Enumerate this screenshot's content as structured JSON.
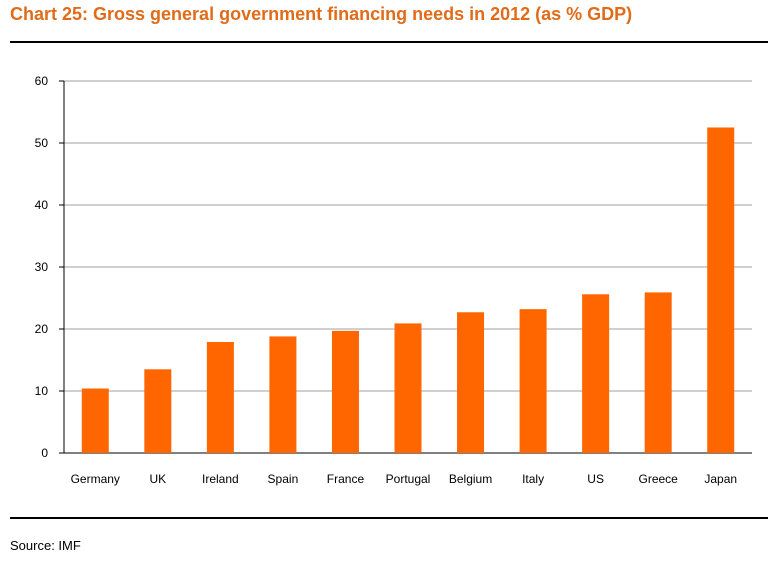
{
  "header": {
    "title": "Chart 25: Gross general government financing needs in 2012 (as % GDP)"
  },
  "footer": {
    "source": "Source: IMF"
  },
  "colors": {
    "bar": "#ff6600",
    "title": "#e06c1a",
    "grid": "#b3b3b3"
  },
  "chart_data": {
    "type": "bar",
    "title": "Chart 25: Gross general government financing needs in 2012 (as % GDP)",
    "xlabel": "",
    "ylabel": "",
    "categories": [
      "Germany",
      "UK",
      "Ireland",
      "Spain",
      "France",
      "Portugal",
      "Belgium",
      "Italy",
      "US",
      "Greece",
      "Japan"
    ],
    "values": [
      10.4,
      13.5,
      17.9,
      18.8,
      19.7,
      20.9,
      22.7,
      23.2,
      25.6,
      25.9,
      52.5
    ],
    "ylim": [
      0,
      60
    ],
    "yticks": [
      "0",
      "10",
      "20",
      "30",
      "40",
      "50",
      "60"
    ],
    "grid": true,
    "legend": "none"
  }
}
